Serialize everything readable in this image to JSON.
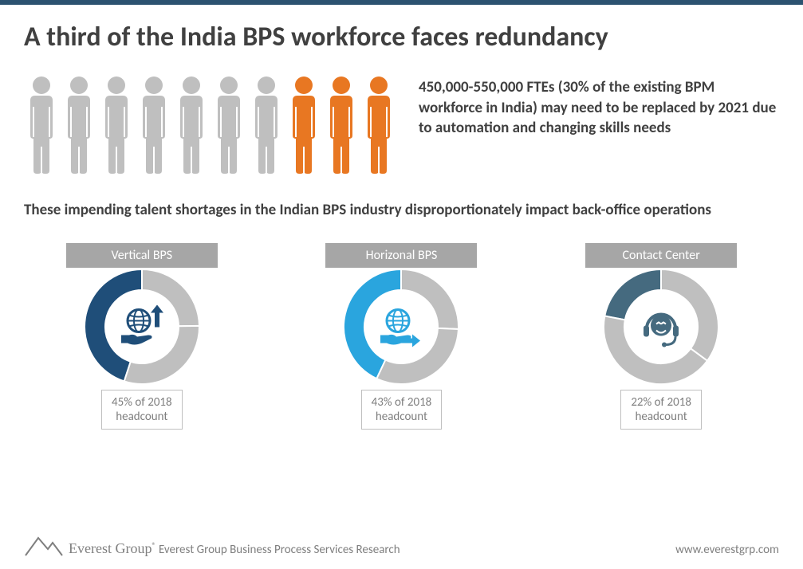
{
  "title": "A third of the India BPS workforce faces redundancy",
  "people": {
    "total": 10,
    "highlighted": 3,
    "base_color": "#bfbfbf",
    "highlight_color": "#e87722"
  },
  "hero_text": "450,000-550,000 FTEs (30% of the existing BPM workforce in India) may need to be replaced by 2021 due to automation and changing skills needs",
  "subhead": "These impending talent shortages in the Indian BPS industry disproportionately impact back-office operations",
  "donuts": [
    {
      "label": "Vertical BPS",
      "percent": 45,
      "color": "#1f4e79",
      "rest_color": "#bfbfbf",
      "caption_line1": "45% of 2018",
      "caption_line2": "headcount",
      "icon": "globe-hand-up"
    },
    {
      "label": "Horizonal BPS",
      "percent": 43,
      "color": "#2aa5de",
      "rest_color": "#bfbfbf",
      "caption_line1": "43% of 2018",
      "caption_line2": "headcount",
      "icon": "globe-hand-right"
    },
    {
      "label": "Contact Center",
      "percent": 22,
      "color": "#456a7f",
      "rest_color": "#bfbfbf",
      "caption_line1": "22% of 2018",
      "caption_line2": "headcount",
      "icon": "headset"
    }
  ],
  "donut_style": {
    "outer_r": 72,
    "inner_r": 46,
    "size": 160
  },
  "footer": {
    "brand": "Everest Group",
    "tagline": "Everest Group Business Process Services Research",
    "url": "www.everestgrp.com"
  }
}
